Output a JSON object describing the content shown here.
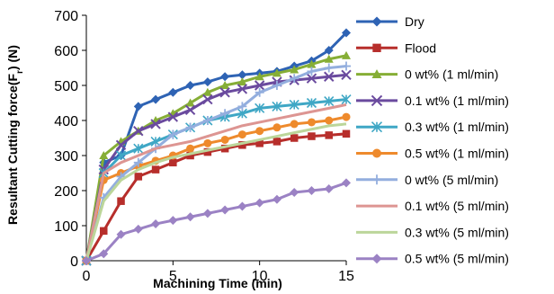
{
  "chart_data": {
    "type": "line",
    "xlabel": "Machining Time (min)",
    "ylabel_main": "Resultant Cutting force(F",
    "ylabel_sub": "r",
    "ylabel_tail": ") (N)",
    "xlim": [
      0,
      15
    ],
    "ylim": [
      0,
      700
    ],
    "x_ticks": [
      0,
      5,
      10,
      15
    ],
    "y_ticks": [
      0,
      100,
      200,
      300,
      400,
      500,
      600,
      700
    ],
    "grid": false,
    "legend_position": "right",
    "series": [
      {
        "name": "Dry",
        "color": "#2e63b4",
        "marker": "diamond",
        "x": [
          0,
          1,
          2,
          3,
          4,
          5,
          6,
          7,
          8,
          9,
          10,
          11,
          12,
          13,
          14,
          15
        ],
        "y": [
          0,
          280,
          300,
          440,
          460,
          480,
          500,
          510,
          525,
          530,
          535,
          540,
          555,
          570,
          600,
          650
        ]
      },
      {
        "name": "Flood",
        "color": "#b72e2b",
        "marker": "square",
        "x": [
          0,
          1,
          2,
          3,
          4,
          5,
          6,
          7,
          8,
          9,
          10,
          11,
          12,
          13,
          14,
          15
        ],
        "y": [
          0,
          85,
          170,
          240,
          260,
          280,
          300,
          310,
          320,
          330,
          335,
          340,
          350,
          355,
          358,
          362
        ]
      },
      {
        "name": "0 wt% (1 ml/min)",
        "color": "#86ae36",
        "marker": "triangle",
        "x": [
          0,
          1,
          2,
          3,
          4,
          5,
          6,
          7,
          8,
          9,
          10,
          11,
          12,
          13,
          14,
          15
        ],
        "y": [
          0,
          300,
          340,
          370,
          400,
          420,
          450,
          480,
          500,
          510,
          525,
          535,
          545,
          560,
          575,
          585
        ]
      },
      {
        "name": "0.1 wt% (1 ml/min)",
        "color": "#6a4a9e",
        "marker": "x",
        "x": [
          0,
          1,
          2,
          3,
          4,
          5,
          6,
          7,
          8,
          9,
          10,
          11,
          12,
          13,
          14,
          15
        ],
        "y": [
          0,
          260,
          330,
          370,
          390,
          410,
          430,
          460,
          480,
          490,
          500,
          510,
          515,
          520,
          525,
          530
        ]
      },
      {
        "name": "0.3 wt% (1 ml/min)",
        "color": "#3fa7c5",
        "marker": "asterisk",
        "x": [
          0,
          1,
          2,
          3,
          4,
          5,
          6,
          7,
          8,
          9,
          10,
          11,
          12,
          13,
          14,
          15
        ],
        "y": [
          0,
          250,
          300,
          320,
          340,
          360,
          380,
          400,
          410,
          420,
          435,
          440,
          445,
          450,
          455,
          460
        ]
      },
      {
        "name": "0.5 wt% (1 ml/min)",
        "color": "#ee8a2c",
        "marker": "circle",
        "x": [
          0,
          1,
          2,
          3,
          4,
          5,
          6,
          7,
          8,
          9,
          10,
          11,
          12,
          13,
          14,
          15
        ],
        "y": [
          0,
          230,
          250,
          270,
          285,
          300,
          320,
          335,
          345,
          360,
          370,
          380,
          390,
          395,
          400,
          410
        ]
      },
      {
        "name": "0 wt% (5 ml/min)",
        "color": "#93aede",
        "marker": "plus",
        "x": [
          0,
          1,
          2,
          3,
          4,
          5,
          6,
          7,
          8,
          9,
          10,
          11,
          12,
          13,
          14,
          15
        ],
        "y": [
          0,
          180,
          240,
          280,
          320,
          360,
          380,
          400,
          420,
          440,
          480,
          500,
          520,
          540,
          550,
          555
        ]
      },
      {
        "name": "0.1 wt% (5 ml/min)",
        "color": "#dd9592",
        "marker": "none",
        "x": [
          0,
          1,
          2,
          3,
          4,
          5,
          6,
          7,
          8,
          9,
          10,
          11,
          12,
          13,
          14,
          15
        ],
        "y": [
          0,
          250,
          280,
          300,
          320,
          330,
          340,
          355,
          370,
          385,
          395,
          405,
          415,
          425,
          435,
          445
        ]
      },
      {
        "name": "0.3 wt% (5 ml/min)",
        "color": "#bcd69a",
        "marker": "none",
        "x": [
          0,
          1,
          2,
          3,
          4,
          5,
          6,
          7,
          8,
          9,
          10,
          11,
          12,
          13,
          14,
          15
        ],
        "y": [
          0,
          170,
          230,
          260,
          280,
          295,
          305,
          315,
          325,
          335,
          345,
          355,
          365,
          375,
          385,
          390
        ]
      },
      {
        "name": "0.5 wt% (5 ml/min)",
        "color": "#9b82c4",
        "marker": "diamond",
        "x": [
          0,
          1,
          2,
          3,
          4,
          5,
          6,
          7,
          8,
          9,
          10,
          11,
          12,
          13,
          14,
          15
        ],
        "y": [
          0,
          20,
          75,
          90,
          105,
          115,
          125,
          135,
          145,
          155,
          165,
          175,
          195,
          200,
          205,
          222
        ]
      }
    ]
  }
}
